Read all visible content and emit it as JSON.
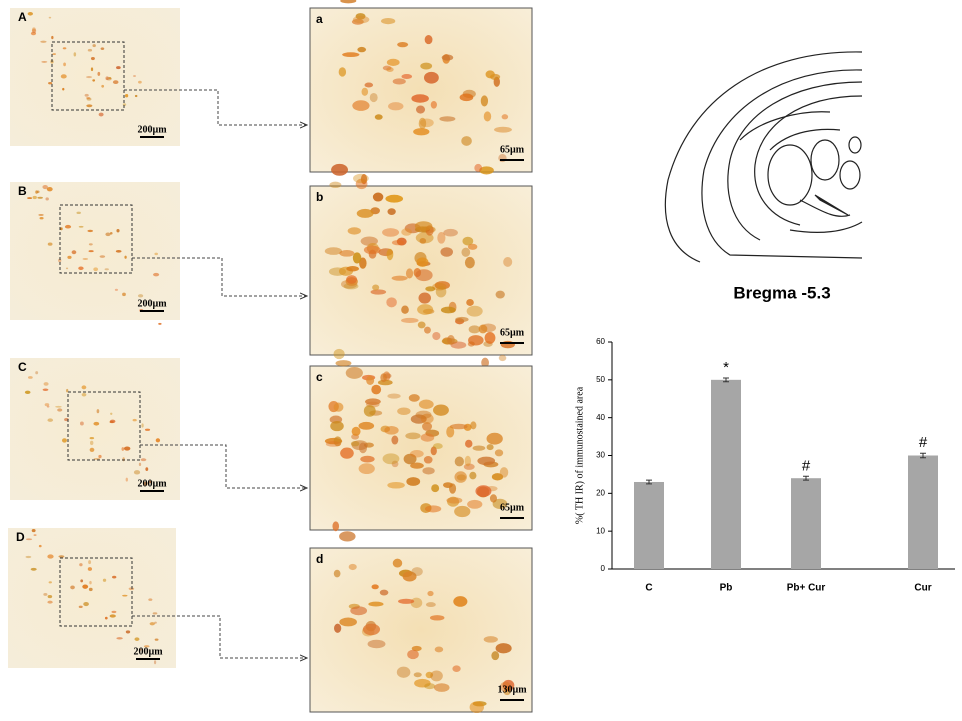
{
  "panels_left": [
    {
      "label": "A",
      "scale": "200µm"
    },
    {
      "label": "B",
      "scale": "200µm"
    },
    {
      "label": "C",
      "scale": "200µm"
    },
    {
      "label": "D",
      "scale": "200µm"
    }
  ],
  "panels_right": [
    {
      "label": "a",
      "scale": "65µm"
    },
    {
      "label": "b",
      "scale": "65µm"
    },
    {
      "label": "c",
      "scale": "65µm"
    },
    {
      "label": "d",
      "scale": "130µm"
    }
  ],
  "atlas_caption": "Bregma -5.3",
  "chart_data": {
    "type": "bar",
    "y_label": "%( TH IR) of immunostained area",
    "categories": [
      "C",
      "Pb",
      "Pb+ Cur",
      "Cur"
    ],
    "values": [
      23,
      50,
      24,
      30
    ],
    "errors": [
      0.5,
      0.5,
      0.5,
      0.6
    ],
    "bar_labels": [
      null,
      "*",
      "#",
      "#"
    ],
    "color": "#a6a6a6",
    "ylim": [
      0,
      60
    ],
    "yticks": [
      0,
      10,
      20,
      30,
      40,
      50,
      60
    ]
  }
}
